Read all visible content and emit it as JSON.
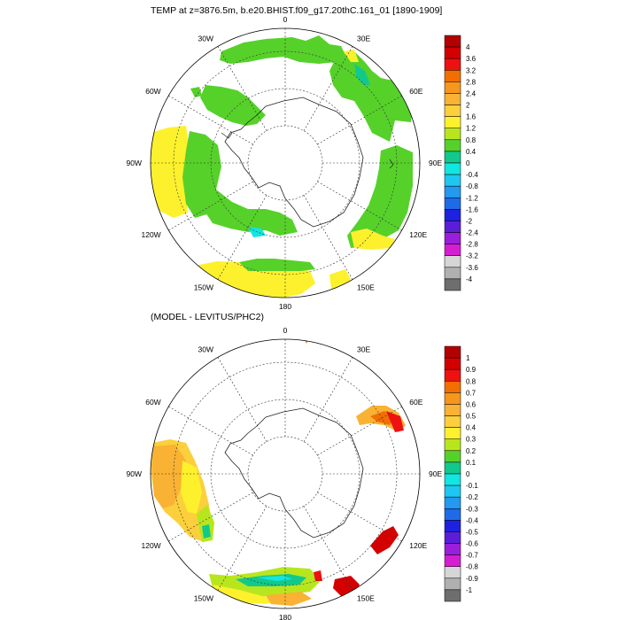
{
  "panels": [
    {
      "id": "top",
      "title": "TEMP at z=3876.5m, b.e20.BHIST.f09_g17.20thC.161_01 [1890-1909]",
      "lon_labels": [
        "0",
        "30E",
        "60E",
        "90E",
        "120E",
        "150E",
        "180",
        "150W",
        "120W",
        "90W",
        "60W",
        "30W"
      ],
      "colorbar": {
        "labels": [
          "4",
          "3.6",
          "3.2",
          "2.8",
          "2.4",
          "2",
          "1.6",
          "1.2",
          "0.8",
          "0.4",
          "0",
          "-0.4",
          "-0.8",
          "-1.2",
          "-1.6",
          "-2",
          "-2.4",
          "-2.8",
          "-3.2",
          "-3.6",
          "-4"
        ],
        "colors": [
          "#b30000",
          "#d40000",
          "#ee1111",
          "#f36e00",
          "#f7961c",
          "#f9b233",
          "#fccf3c",
          "#fdf12d",
          "#b8e61e",
          "#56d12a",
          "#12c98c",
          "#12e6e0",
          "#1ec7f2",
          "#2399f0",
          "#1e6be8",
          "#1e22e0",
          "#5a1edb",
          "#9b1edc",
          "#d51ed2",
          "#d6d6d6",
          "#b0b0b0",
          "#6e6e6e"
        ]
      }
    },
    {
      "id": "bottom",
      "title": "(MODEL - LEVITUS/PHC2)",
      "lon_labels": [
        "0",
        "30E",
        "60E",
        "90E",
        "120E",
        "150E",
        "180",
        "150W",
        "120W",
        "90W",
        "60W",
        "30W"
      ],
      "colorbar": {
        "labels": [
          "1",
          "0.9",
          "0.8",
          "0.7",
          "0.6",
          "0.5",
          "0.4",
          "0.3",
          "0.2",
          "0.1",
          "0",
          "-0.1",
          "-0.2",
          "-0.3",
          "-0.4",
          "-0.5",
          "-0.6",
          "-0.7",
          "-0.8",
          "-0.9",
          "-1"
        ],
        "colors": [
          "#b30000",
          "#d40000",
          "#ee1111",
          "#f36e00",
          "#f7961c",
          "#f9b233",
          "#fccf3c",
          "#fdf12d",
          "#b8e61e",
          "#56d12a",
          "#12c98c",
          "#12e6e0",
          "#1ec7f2",
          "#2399f0",
          "#1e6be8",
          "#1e22e0",
          "#5a1edb",
          "#9b1edc",
          "#d51ed2",
          "#d6d6d6",
          "#b0b0b0",
          "#6e6e6e"
        ]
      }
    }
  ]
}
